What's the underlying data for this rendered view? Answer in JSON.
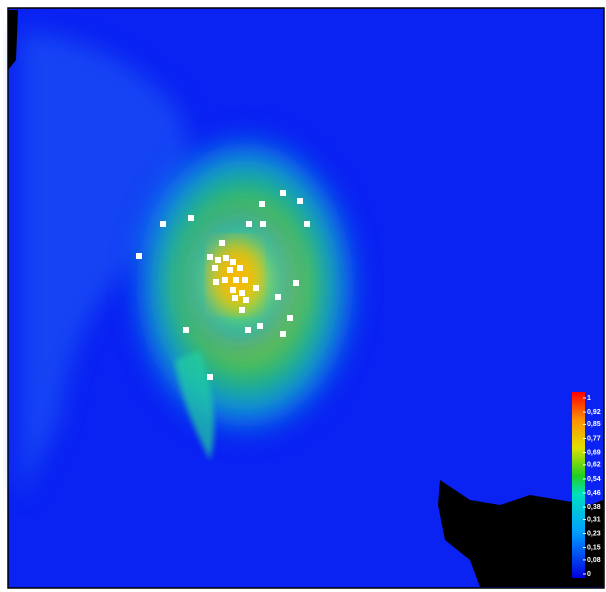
{
  "colorbar": {
    "ticks": [
      {
        "value": 1,
        "label": "1"
      },
      {
        "value": 0.92,
        "label": "0,92"
      },
      {
        "value": 0.85,
        "label": "0,85"
      },
      {
        "value": 0.77,
        "label": "0,77"
      },
      {
        "value": 0.69,
        "label": "0,69"
      },
      {
        "value": 0.62,
        "label": "0,62"
      },
      {
        "value": 0.54,
        "label": "0,54"
      },
      {
        "value": 0.46,
        "label": "0,46"
      },
      {
        "value": 0.38,
        "label": "0,38"
      },
      {
        "value": 0.31,
        "label": "0,31"
      },
      {
        "value": 0.23,
        "label": "0,23"
      },
      {
        "value": 0.15,
        "label": "0,15"
      },
      {
        "value": 0.08,
        "label": "0,08"
      },
      {
        "value": 0,
        "label": "0"
      }
    ]
  }
}
